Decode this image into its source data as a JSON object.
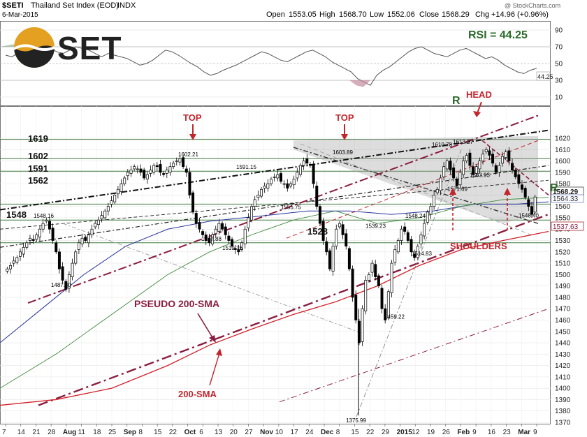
{
  "header": {
    "symbol": "$SETI",
    "name": "Thailand Set Index (EOD)",
    "exchange": "INDX",
    "date": "6-Mar-2015",
    "open_label": "Open",
    "open": "1553.05",
    "high_label": "High",
    "high": "1568.70",
    "low_label": "Low",
    "low": "1552.06",
    "close_label": "Close",
    "close": "1568.29",
    "chg_label": "Chg",
    "chg": "+14.96 (+0.96%)",
    "watermark": "@ StockCharts.com"
  },
  "logo": {
    "text": "SET"
  },
  "rsi_panel": {
    "label": "RSI = 44.25",
    "current": "44.25",
    "ticks": [
      "90",
      "70",
      "50",
      "30",
      "10"
    ]
  },
  "price_axis_ticks": [
    "1620",
    "1610",
    "1600",
    "1590",
    "1580",
    "1570",
    "1560",
    "1550",
    "1540",
    "1530",
    "1520",
    "1510",
    "1500",
    "1490",
    "1480",
    "1470",
    "1460",
    "1450",
    "1440",
    "1430",
    "1420",
    "1410",
    "1400",
    "1390",
    "1380",
    "1370"
  ],
  "price_tags": {
    "close": "1568.29",
    "ma1": "1564.33",
    "ma2": "1537.63"
  },
  "x_axis_ticks": [
    {
      "t": "7",
      "b": false
    },
    {
      "t": "14",
      "b": false
    },
    {
      "t": "21",
      "b": false
    },
    {
      "t": "28",
      "b": false
    },
    {
      "t": "Aug",
      "b": true
    },
    {
      "t": "11",
      "b": false
    },
    {
      "t": "18",
      "b": false
    },
    {
      "t": "25",
      "b": false
    },
    {
      "t": "Sep",
      "b": true
    },
    {
      "t": "8",
      "b": false
    },
    {
      "t": "15",
      "b": false
    },
    {
      "t": "22",
      "b": false
    },
    {
      "t": "Oct",
      "b": true
    },
    {
      "t": "6",
      "b": false
    },
    {
      "t": "13",
      "b": false
    },
    {
      "t": "20",
      "b": false
    },
    {
      "t": "27",
      "b": false
    },
    {
      "t": "Nov",
      "b": true
    },
    {
      "t": "10",
      "b": false
    },
    {
      "t": "17",
      "b": false
    },
    {
      "t": "24",
      "b": false
    },
    {
      "t": "Dec",
      "b": true
    },
    {
      "t": "8",
      "b": false
    },
    {
      "t": "15",
      "b": false
    },
    {
      "t": "22",
      "b": false
    },
    {
      "t": "29",
      "b": false
    },
    {
      "t": "2015",
      "b": true
    },
    {
      "t": "12",
      "b": false
    },
    {
      "t": "19",
      "b": false
    },
    {
      "t": "26",
      "b": false
    },
    {
      "t": "Feb",
      "b": true
    },
    {
      "t": "9",
      "b": false
    },
    {
      "t": "16",
      "b": false
    },
    {
      "t": "23",
      "b": false
    },
    {
      "t": "Mar",
      "b": true
    },
    {
      "t": "9",
      "b": false
    }
  ],
  "level_labels": [
    "1619",
    "1602",
    "1591",
    "1562",
    "1548",
    "1528"
  ],
  "annotations": {
    "top1": "TOP",
    "top2": "TOP",
    "head": "HEAD",
    "shoulders": "SHOULDERS",
    "r_left": "R",
    "r_right": "R",
    "pseudo": "PSEUDO 200-SMA",
    "sma": "200-SMA"
  },
  "point_labels": [
    "1548.16",
    "1487.40",
    "1602.21",
    "1591.15",
    "1527.88",
    "1519.76",
    "1603.89",
    "1555.75",
    "1539.23",
    "1548.24",
    "1613.27",
    "1610.78",
    "1583.93",
    "1571.69",
    "1514.83",
    "1548.40",
    "1459.22",
    "1375.99"
  ],
  "chart_data": {
    "type": "candlestick",
    "title": "$SETI Thailand Set Index (EOD) INDX",
    "date": "6-Mar-2015",
    "ohlc_last": {
      "open": 1553.05,
      "high": 1568.7,
      "low": 1552.06,
      "close": 1568.29,
      "chg": 14.96,
      "chg_pct": 0.96
    },
    "ylim": [
      1365,
      1632
    ],
    "yticks": [
      1370,
      1380,
      1390,
      1400,
      1410,
      1420,
      1430,
      1440,
      1450,
      1460,
      1470,
      1480,
      1490,
      1500,
      1510,
      1520,
      1530,
      1540,
      1550,
      1560,
      1570,
      1580,
      1590,
      1600,
      1610,
      1620
    ],
    "rsi": {
      "current": 44.25,
      "ylim": [
        0,
        100
      ],
      "levels": [
        90,
        70,
        50,
        30,
        10
      ],
      "series": [
        60,
        58,
        63,
        66,
        68,
        70,
        72,
        68,
        64,
        62,
        66,
        70,
        68,
        66,
        62,
        58,
        62,
        60,
        58,
        56,
        52,
        48,
        50,
        54,
        60,
        66,
        64,
        60,
        55,
        50,
        46,
        40,
        36,
        38,
        42,
        45,
        48,
        52,
        56,
        60,
        64,
        62,
        58,
        54,
        52,
        56,
        60,
        64,
        66,
        62,
        58,
        52,
        48,
        44,
        40,
        32,
        28,
        24,
        36,
        42,
        46,
        52,
        58,
        64,
        68,
        70,
        66,
        62,
        60,
        58,
        62,
        66,
        68,
        64,
        60,
        56,
        58,
        54,
        48,
        44,
        40,
        38,
        42,
        44.25
      ]
    },
    "horizontal_levels": [
      1619,
      1602,
      1591,
      1562,
      1548,
      1528
    ],
    "price_markers": [
      {
        "label": "1548.16",
        "value": 1548.16
      },
      {
        "label": "1487.40",
        "value": 1487.4
      },
      {
        "label": "1602.21",
        "value": 1602.21
      },
      {
        "label": "1591.15",
        "value": 1591.15
      },
      {
        "label": "1527.88",
        "value": 1527.88
      },
      {
        "label": "1519.76",
        "value": 1519.76
      },
      {
        "label": "1603.89",
        "value": 1603.89
      },
      {
        "label": "1555.75",
        "value": 1555.75
      },
      {
        "label": "1539.23",
        "value": 1539.23
      },
      {
        "label": "1548.24",
        "value": 1548.24
      },
      {
        "label": "1613.27",
        "value": 1613.27
      },
      {
        "label": "1610.78",
        "value": 1610.78
      },
      {
        "label": "1583.93",
        "value": 1583.93
      },
      {
        "label": "1571.69",
        "value": 1571.69
      },
      {
        "label": "1514.83",
        "value": 1514.83
      },
      {
        "label": "1548.40",
        "value": 1548.4
      },
      {
        "label": "1459.22",
        "value": 1459.22
      },
      {
        "label": "1375.99",
        "value": 1375.99
      }
    ],
    "closes": [
      1505,
      1508,
      1512,
      1515,
      1520,
      1524,
      1528,
      1532,
      1530,
      1535,
      1540,
      1545,
      1548,
      1540,
      1530,
      1520,
      1505,
      1495,
      1487,
      1500,
      1510,
      1520,
      1528,
      1532,
      1530,
      1535,
      1540,
      1545,
      1548,
      1552,
      1556,
      1560,
      1565,
      1570,
      1575,
      1580,
      1585,
      1590,
      1592,
      1595,
      1593,
      1590,
      1585,
      1588,
      1592,
      1596,
      1595,
      1590,
      1588,
      1592,
      1595,
      1598,
      1600,
      1602,
      1595,
      1590,
      1570,
      1555,
      1545,
      1540,
      1535,
      1530,
      1528,
      1535,
      1540,
      1545,
      1540,
      1535,
      1530,
      1525,
      1522,
      1520,
      1528,
      1540,
      1550,
      1560,
      1566,
      1570,
      1575,
      1578,
      1580,
      1584,
      1586,
      1588,
      1582,
      1580,
      1576,
      1580,
      1584,
      1590,
      1596,
      1600,
      1598,
      1596,
      1580,
      1560,
      1545,
      1530,
      1520,
      1505,
      1525,
      1540,
      1545,
      1535,
      1525,
      1505,
      1480,
      1460,
      1440,
      1470,
      1495,
      1500,
      1510,
      1498,
      1490,
      1470,
      1460,
      1485,
      1510,
      1522,
      1530,
      1540,
      1538,
      1530,
      1520,
      1515,
      1525,
      1535,
      1545,
      1555,
      1560,
      1570,
      1575,
      1585,
      1595,
      1600,
      1592,
      1585,
      1578,
      1590,
      1600,
      1605,
      1596,
      1588,
      1595,
      1600,
      1606,
      1610,
      1605,
      1598,
      1590,
      1596,
      1604,
      1608,
      1600,
      1592,
      1586,
      1580,
      1575,
      1568,
      1560,
      1553,
      1568.29
    ],
    "indicators": [
      "200-SMA",
      "PSEUDO 200-SMA",
      "RSI"
    ]
  }
}
